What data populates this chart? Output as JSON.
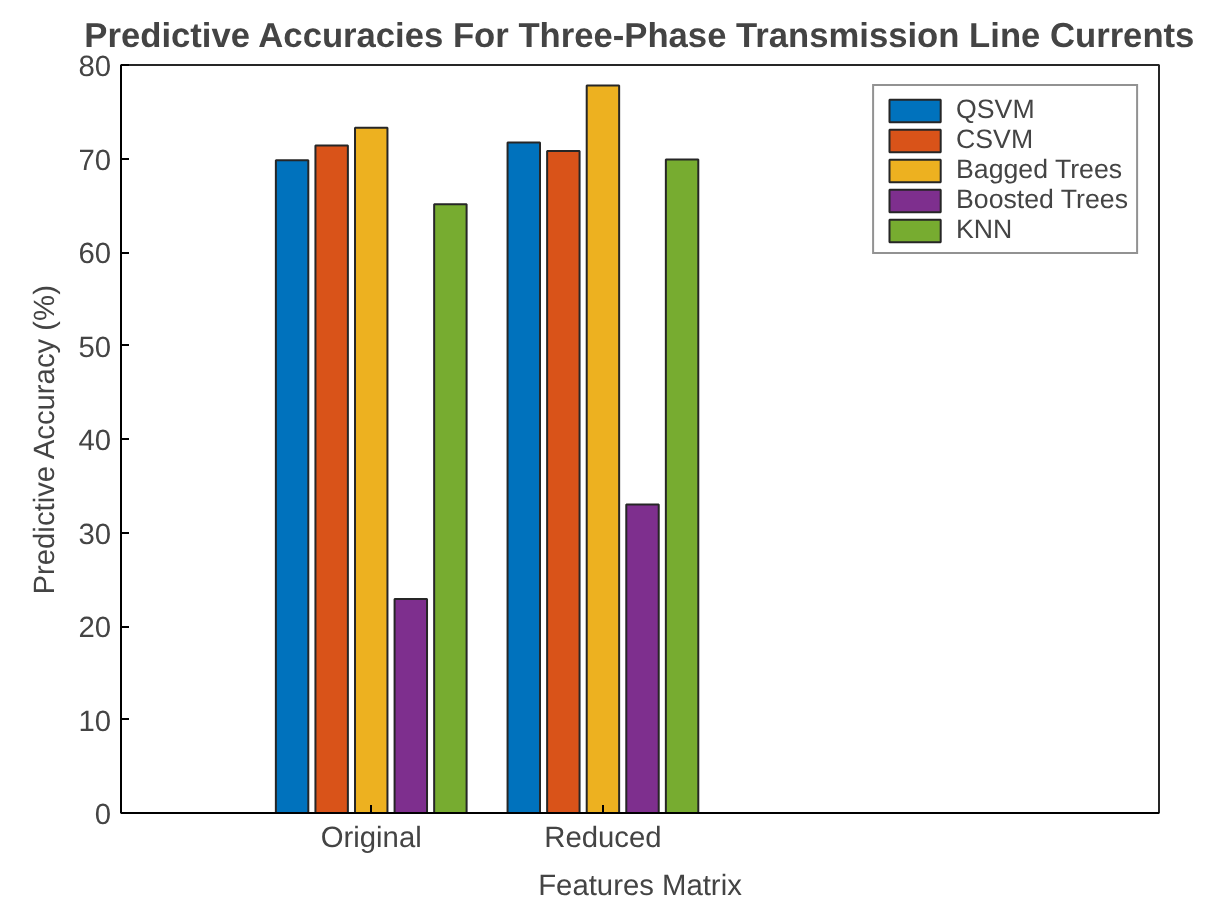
{
  "chart_data": {
    "type": "bar",
    "title": "Predictive Accuracies For Three-Phase Transmission Line Currents",
    "xlabel": "Features Matrix",
    "ylabel": "Predictive Accuracy (%)",
    "categories": [
      "Original",
      "Reduced"
    ],
    "series": [
      {
        "name": "QSVM",
        "color": "#0072bd",
        "values": [
          69.8,
          71.7
        ]
      },
      {
        "name": "CSVM",
        "color": "#d95319",
        "values": [
          71.4,
          70.8
        ]
      },
      {
        "name": "Bagged Trees",
        "color": "#edb120",
        "values": [
          73.3,
          77.8
        ]
      },
      {
        "name": "Boosted Trees",
        "color": "#7e2f8e",
        "values": [
          22.9,
          33.0
        ]
      },
      {
        "name": "KNN",
        "color": "#77ac30",
        "values": [
          65.1,
          69.9
        ]
      }
    ],
    "ylim": [
      0,
      80
    ],
    "yticks": [
      0,
      10,
      20,
      30,
      40,
      50,
      60,
      70,
      80
    ],
    "grid": false,
    "legend": "top right"
  }
}
